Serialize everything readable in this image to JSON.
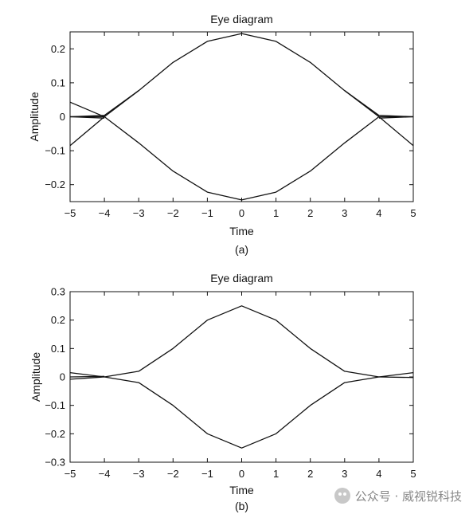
{
  "chart_data": [
    {
      "type": "line",
      "title": "Eye diagram",
      "xlabel": "Time",
      "ylabel": "Amplitude",
      "caption": "(a)",
      "xlim": [
        -5,
        5
      ],
      "ylim": [
        -0.25,
        0.25
      ],
      "xticks": [
        "-5",
        "-4",
        "-3",
        "-2",
        "-1",
        "0",
        "1",
        "2",
        "3",
        "4",
        "5"
      ],
      "yticks": [
        "0.2",
        "0.1",
        "0",
        "-0.1",
        "-0.2"
      ],
      "ytick_values": [
        0.2,
        0.1,
        0,
        -0.1,
        -0.2
      ],
      "grid": false,
      "series": [
        {
          "x": [
            -5,
            -4,
            -3,
            -2,
            -1,
            0,
            1,
            2,
            3,
            4,
            5
          ],
          "y": [
            -0.085,
            0.0,
            0.077,
            0.16,
            0.222,
            0.245,
            0.222,
            0.16,
            0.077,
            0.0,
            -0.085
          ]
        },
        {
          "x": [
            -5,
            -4,
            -3,
            -2,
            -1,
            0,
            1,
            2,
            3,
            4,
            5
          ],
          "y": [
            0.0,
            0.0,
            -0.077,
            -0.16,
            -0.222,
            -0.245,
            -0.222,
            -0.16,
            -0.077,
            0.0,
            0.0
          ]
        },
        {
          "x": [
            -5,
            -4,
            -3
          ],
          "y": [
            0.0,
            0.004,
            0.077
          ]
        },
        {
          "x": [
            -5,
            -4
          ],
          "y": [
            0.043,
            0.0
          ]
        },
        {
          "x": [
            -5,
            -4
          ],
          "y": [
            0.0,
            -0.004
          ]
        },
        {
          "x": [
            3,
            4,
            5
          ],
          "y": [
            0.077,
            0.004,
            0.0
          ]
        },
        {
          "x": [
            4,
            5
          ],
          "y": [
            -0.004,
            0.0
          ]
        }
      ]
    },
    {
      "type": "line",
      "title": "Eye diagram",
      "xlabel": "Time",
      "ylabel": "Amplitude",
      "caption": "(b)",
      "xlim": [
        -5,
        5
      ],
      "ylim": [
        -0.3,
        0.3
      ],
      "xticks": [
        "-5",
        "-4",
        "-3",
        "-2",
        "-1",
        "0",
        "1",
        "2",
        "3",
        "4",
        "5"
      ],
      "yticks": [
        "0.3",
        "0.2",
        "0.1",
        "0",
        "-0.1",
        "-0.2",
        "-0.3"
      ],
      "ytick_values": [
        0.3,
        0.2,
        0.1,
        0,
        -0.1,
        -0.2,
        -0.3
      ],
      "grid": false,
      "series": [
        {
          "x": [
            -4,
            -3,
            -2,
            -1,
            0,
            1,
            2,
            3,
            4
          ],
          "y": [
            0.0,
            0.02,
            0.1,
            0.2,
            0.25,
            0.2,
            0.1,
            0.02,
            0.0
          ]
        },
        {
          "x": [
            -4,
            -3,
            -2,
            -1,
            0,
            1,
            2,
            3,
            4
          ],
          "y": [
            0.0,
            -0.02,
            -0.1,
            -0.2,
            -0.25,
            -0.2,
            -0.1,
            -0.02,
            0.0
          ]
        },
        {
          "x": [
            -5,
            -4
          ],
          "y": [
            0.015,
            0.0
          ]
        },
        {
          "x": [
            -5,
            -4
          ],
          "y": [
            -0.008,
            0.0
          ]
        },
        {
          "x": [
            -5,
            -4
          ],
          "y": [
            0.0,
            0.002
          ]
        },
        {
          "x": [
            4,
            5
          ],
          "y": [
            0.0,
            0.015
          ]
        },
        {
          "x": [
            4,
            5
          ],
          "y": [
            0.0,
            -0.002
          ]
        }
      ]
    }
  ],
  "watermark": {
    "text": "公众号 · 威视锐科技",
    "icon": "wechat-icon"
  }
}
